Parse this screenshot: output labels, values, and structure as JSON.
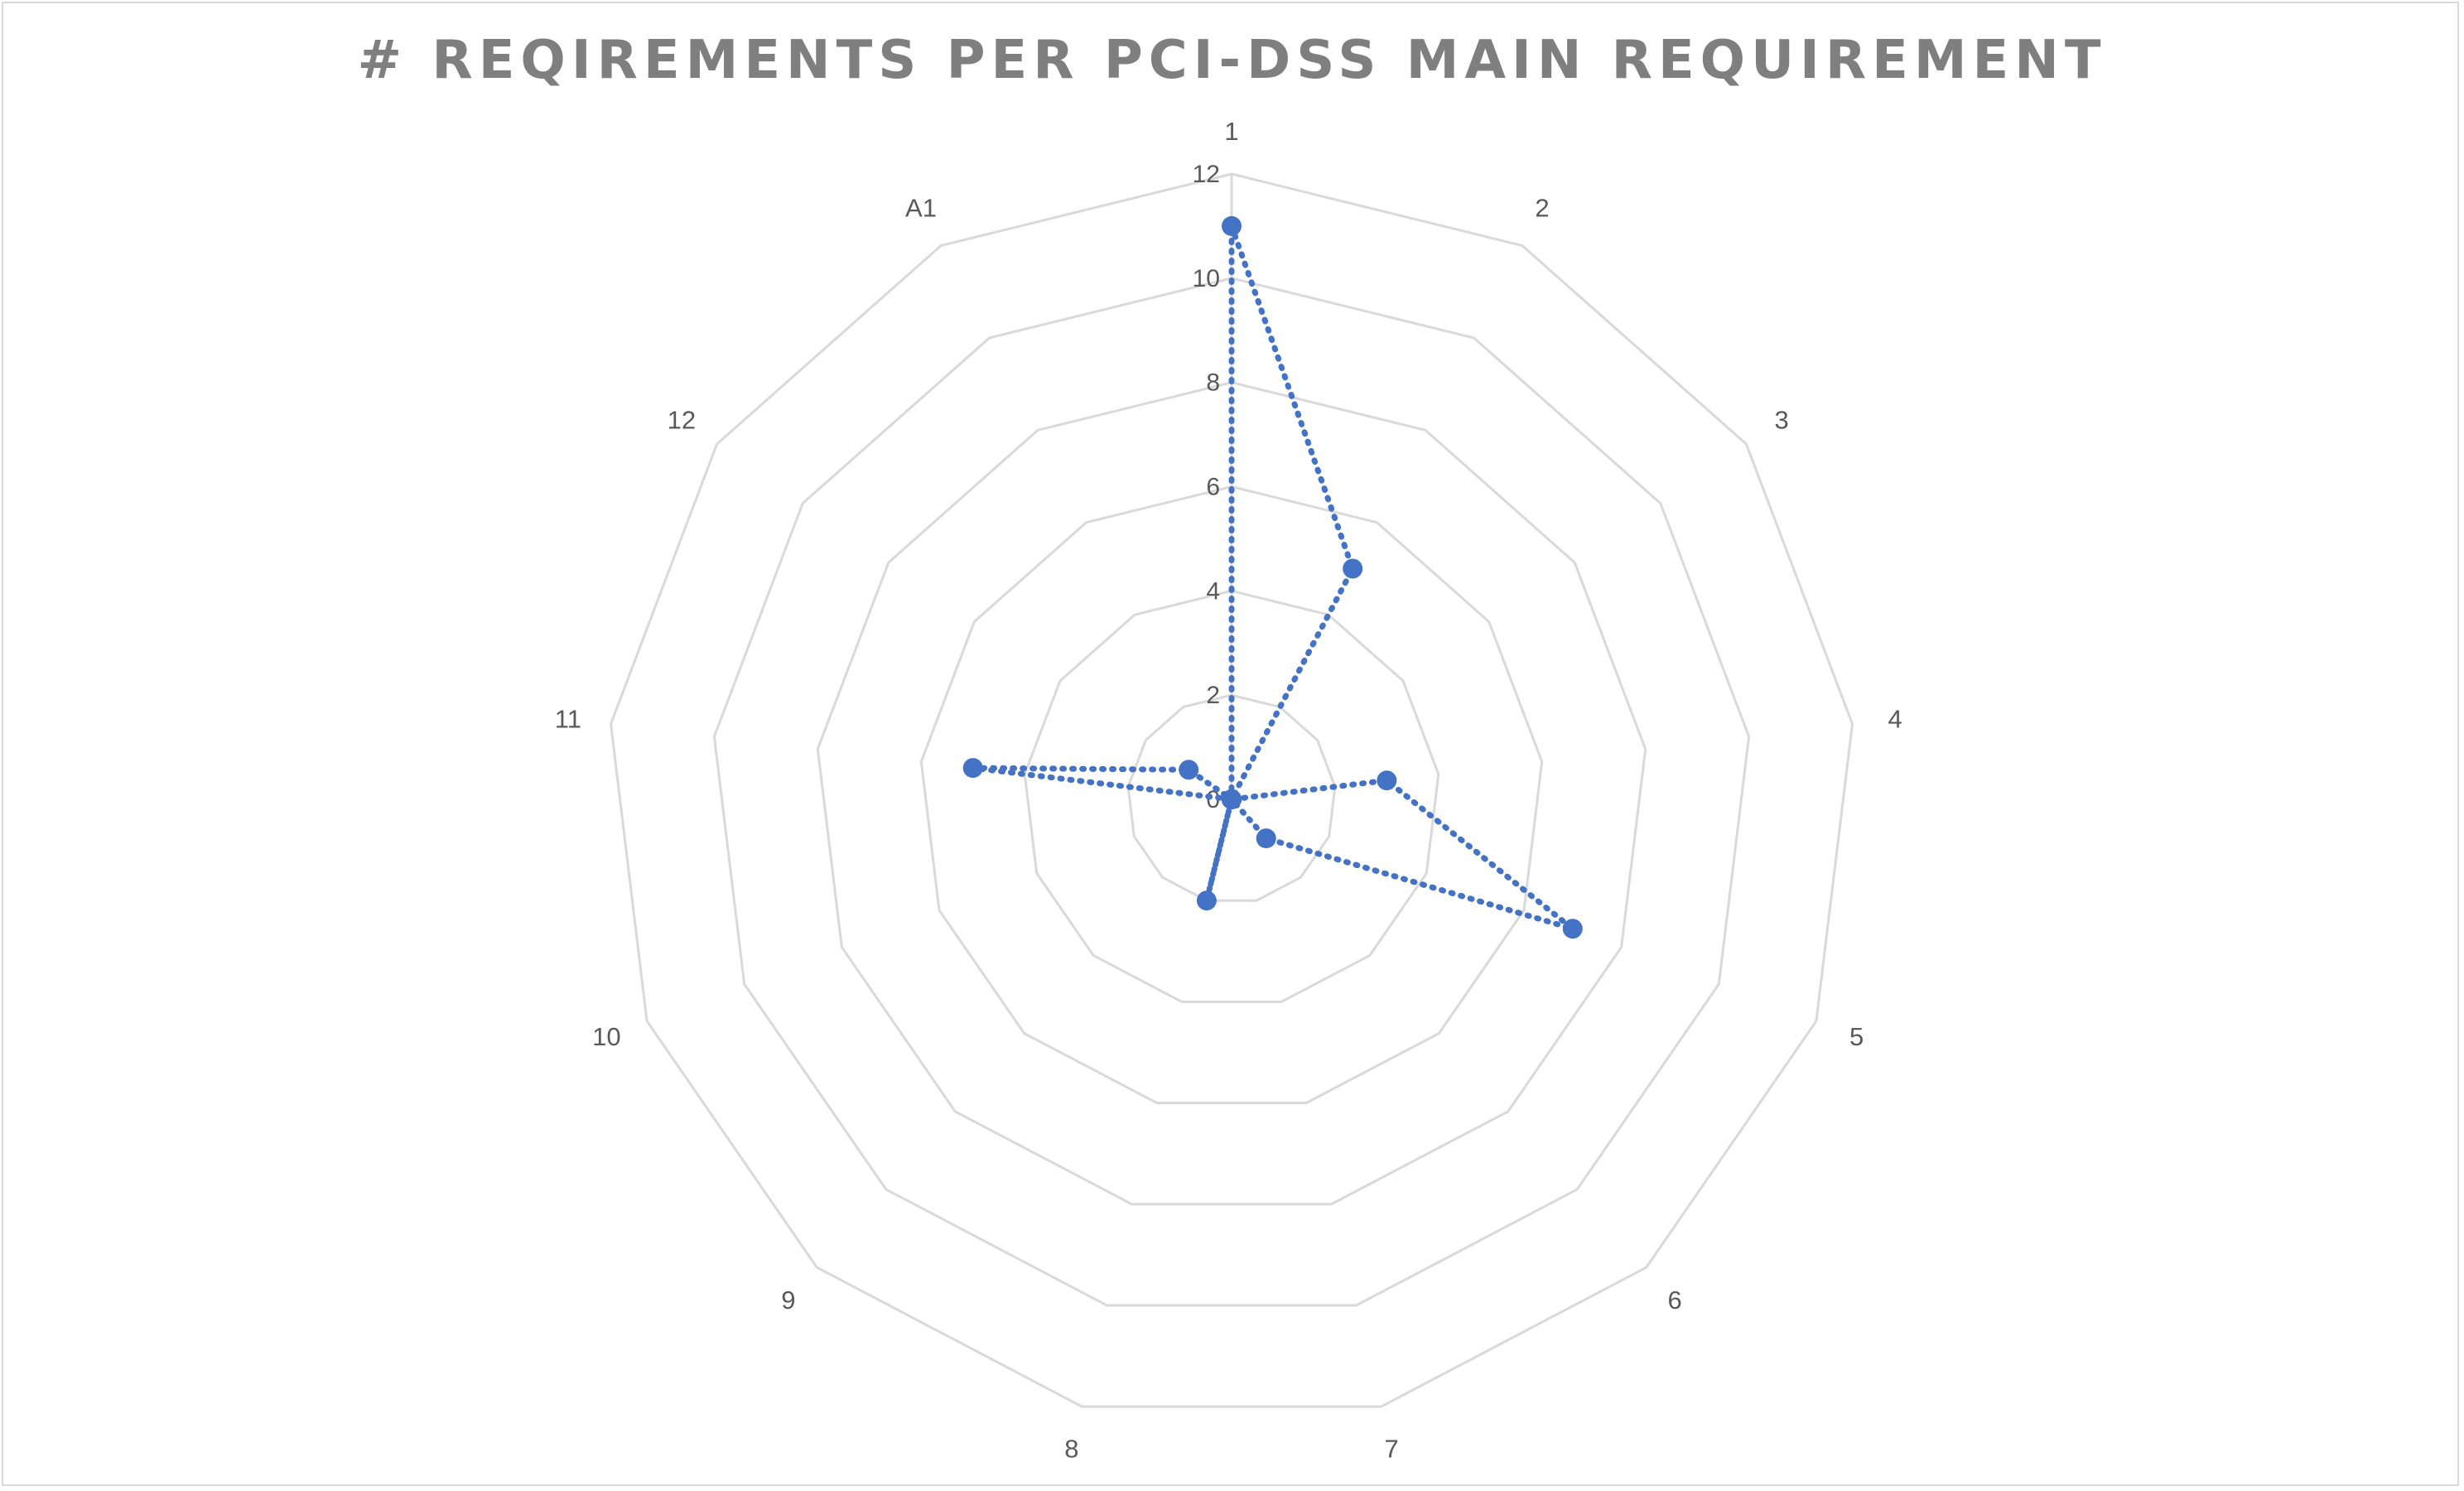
{
  "chart_data": {
    "type": "radar",
    "title": "# REQIREMENTS PER PCI-DSS MAIN REQUIREMENT",
    "categories": [
      "1",
      "2",
      "3",
      "4",
      "5",
      "6",
      "7",
      "8",
      "9",
      "10",
      "11",
      "12",
      "A1"
    ],
    "series": [
      {
        "values": [
          11,
          5,
          0,
          3,
          7,
          1,
          0,
          2,
          0,
          0,
          5,
          1,
          0
        ]
      }
    ],
    "rlim": [
      0,
      12
    ],
    "rticks": [
      "0",
      "2",
      "4",
      "6",
      "8",
      "10",
      "12"
    ],
    "grid": true,
    "legend": "none",
    "colors": {
      "series": "#4472c4",
      "grid": "#d9d9d9",
      "text": "#595959",
      "title": "#7f7f7f"
    }
  }
}
